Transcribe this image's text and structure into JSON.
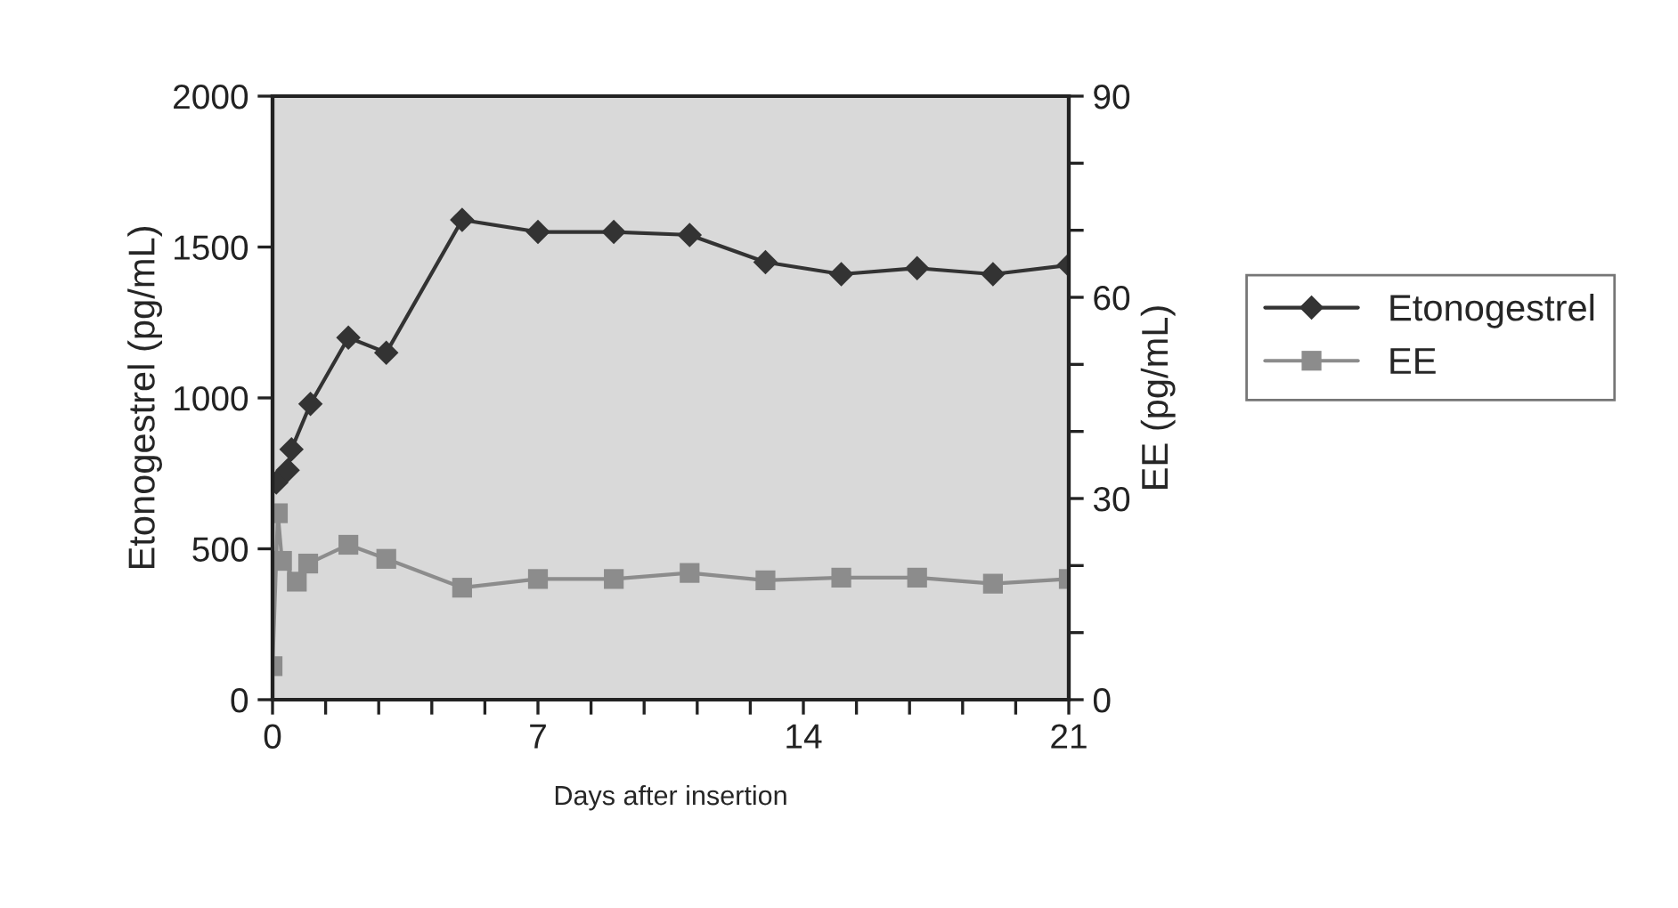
{
  "chart_data": {
    "type": "line",
    "xlabel": "Days after insertion",
    "ylabel": "Etonogestrel (pg/mL)",
    "y2label": "EE (pg/mL)",
    "series": [
      {
        "name": "Etonogestrel",
        "color": "#333333",
        "marker": "diamond",
        "x": [
          0.1,
          0.4,
          0.5,
          1,
          2,
          3,
          5,
          7,
          9,
          11,
          13,
          15,
          17,
          19,
          21
        ],
        "values": [
          720,
          760,
          830,
          980,
          1200,
          1150,
          1590,
          1550,
          1550,
          1540,
          1450,
          1410,
          1430,
          1410,
          1440
        ]
      },
      {
        "name": "EE",
        "color": "#8c8c8c",
        "marker": "square",
        "axis": "y2",
        "x": [
          0,
          0.14,
          0.25,
          0.64,
          0.94,
          2,
          3,
          5,
          7,
          9,
          11,
          13,
          15,
          17,
          19,
          21
        ],
        "values": [
          5,
          27.8,
          20.7,
          17.6,
          20.3,
          23.1,
          21,
          16.7,
          18,
          18,
          18.9,
          17.8,
          18.2,
          18.2,
          17.3,
          18
        ]
      }
    ],
    "xlim": [
      0,
      21
    ],
    "xticks": [
      0,
      {
        "value": 1.4,
        "label": null
      },
      {
        "value": 2.8,
        "label": null
      },
      {
        "value": 4.2,
        "label": null
      },
      {
        "value": 5.6,
        "label": null
      },
      7,
      {
        "value": 8.4,
        "label": null
      },
      {
        "value": 9.8,
        "label": null
      },
      {
        "value": 11.2,
        "label": null
      },
      {
        "value": 12.6,
        "label": null
      },
      14,
      {
        "value": 15.4,
        "label": null
      },
      {
        "value": 16.8,
        "label": null
      },
      {
        "value": 18.2,
        "label": null
      },
      {
        "value": 19.6,
        "label": null
      },
      21
    ],
    "ylim": [
      0,
      2000
    ],
    "yticks": [
      0,
      500,
      1000,
      1500,
      2000
    ],
    "y2lim": [
      0,
      90
    ],
    "y2ticks": [
      0,
      {
        "value": 10,
        "label": null
      },
      {
        "value": 20,
        "label": null
      },
      30,
      {
        "value": 40,
        "label": null
      },
      {
        "value": 50,
        "label": null
      },
      60,
      {
        "value": 70,
        "label": null
      },
      {
        "value": 80,
        "label": null
      },
      90
    ],
    "grid": false,
    "legend": "right",
    "line_style": "solid"
  }
}
